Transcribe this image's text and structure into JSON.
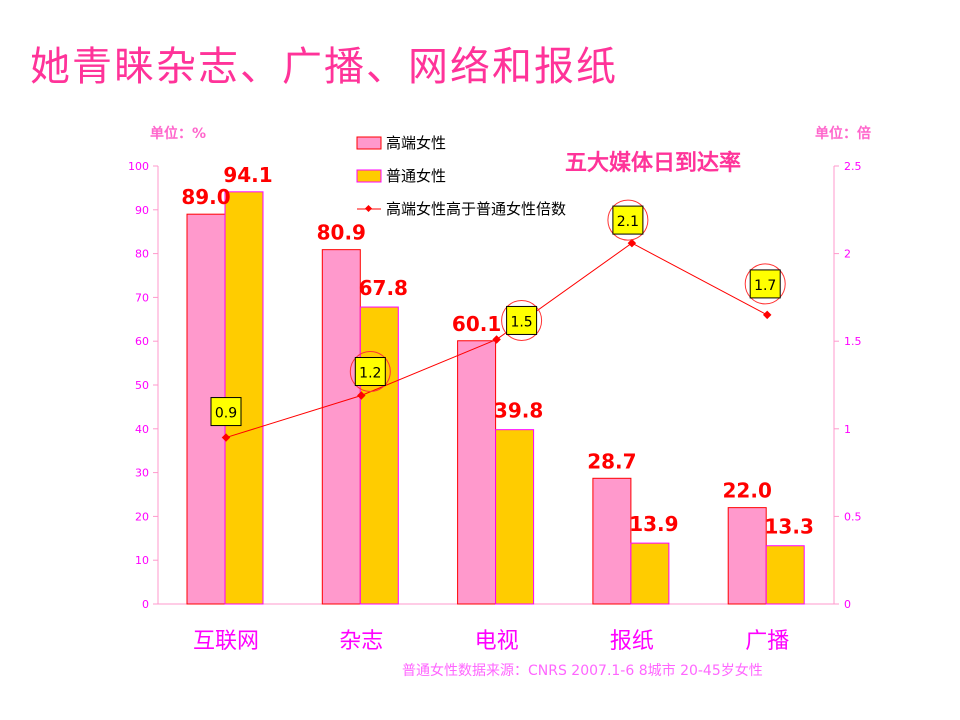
{
  "slide_title": "她青睐杂志、广播、网络和报纸",
  "chart_data": {
    "type": "bar",
    "title": "五大媒体日到达率",
    "left_unit": "单位：%",
    "right_unit": "单位：倍",
    "categories": [
      "互联网",
      "杂志",
      "电视",
      "报纸",
      "广播"
    ],
    "series": [
      {
        "name": "高端女性",
        "type": "bar",
        "axis": "left",
        "color": "#ff99cc",
        "values": [
          89.0,
          80.9,
          60.1,
          28.7,
          22.0
        ],
        "labels": [
          "89.0",
          "80.9",
          "60.1",
          "28.7",
          "22.0"
        ]
      },
      {
        "name": "普通女性",
        "type": "bar",
        "axis": "left",
        "color": "#ffcc00",
        "values": [
          94.1,
          67.8,
          39.8,
          13.9,
          13.3
        ],
        "labels": [
          "94.1",
          "67.8",
          "39.8",
          "13.9",
          "13.3"
        ]
      },
      {
        "name": "高端女性高于普通女性倍数",
        "type": "line",
        "axis": "right",
        "color": "#ff0000",
        "values": [
          0.95,
          1.19,
          1.51,
          2.06,
          1.65
        ],
        "labels": [
          "0.9",
          "1.2",
          "1.5",
          "2.1",
          "1.7"
        ]
      }
    ],
    "left_axis": {
      "ylim": [
        0,
        100
      ],
      "ticks": [
        "0",
        "10",
        "20",
        "30",
        "40",
        "50",
        "60",
        "70",
        "80",
        "90",
        "100"
      ]
    },
    "right_axis": {
      "ylim": [
        0,
        2.5
      ],
      "ticks": [
        "0",
        "0.5",
        "1",
        "1.5",
        "2",
        "2.5"
      ]
    },
    "legend_placement": "top-center",
    "source_note": "普通女性数据来源：CNRS  2007.1-6  8城市 20-45岁女性"
  }
}
